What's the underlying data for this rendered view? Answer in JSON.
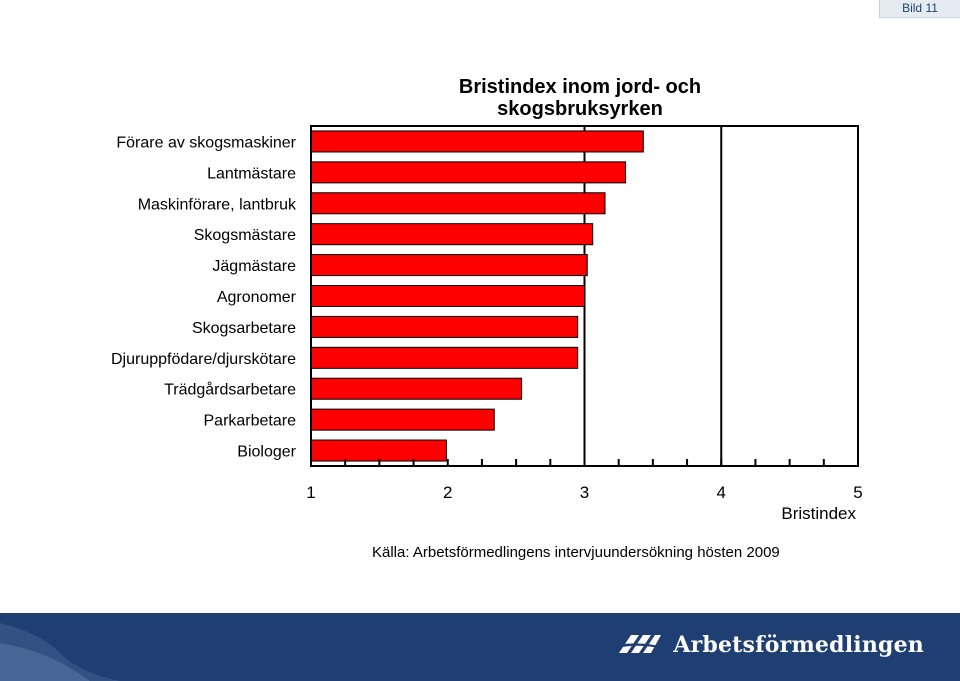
{
  "slide_label": "Bild 11",
  "chart_data": {
    "type": "bar",
    "orientation": "horizontal",
    "title": [
      "Bristindex inom jord- och",
      "skogsbruksyrken"
    ],
    "xlabel": "Bristindex",
    "ylabel": "",
    "xlim": [
      1,
      5
    ],
    "ticks": [
      "1",
      "2",
      "3",
      "4",
      "5"
    ],
    "categories": [
      "Förare av skogsmaskiner",
      "Lantmästare",
      "Maskinförare, lantbruk",
      "Skogsmästare",
      "Jägmästare",
      "Agronomer",
      "Skogsarbetare",
      "Djuruppfödare/djurskötare",
      "Trädgårdsarbetare",
      "Parkarbetare",
      "Biologer"
    ],
    "values": [
      3.43,
      3.3,
      3.15,
      3.06,
      3.02,
      3.0,
      2.95,
      2.95,
      2.54,
      2.34,
      1.99
    ],
    "bar_color": "#ff0000",
    "gridlines": [
      3,
      4
    ]
  },
  "source": "Källa: Arbetsförmedlingens intervjuundersökning hösten 2009",
  "footer": {
    "logo_text": "Arbetsförmedlingen",
    "band_color": "#1f3f73"
  }
}
